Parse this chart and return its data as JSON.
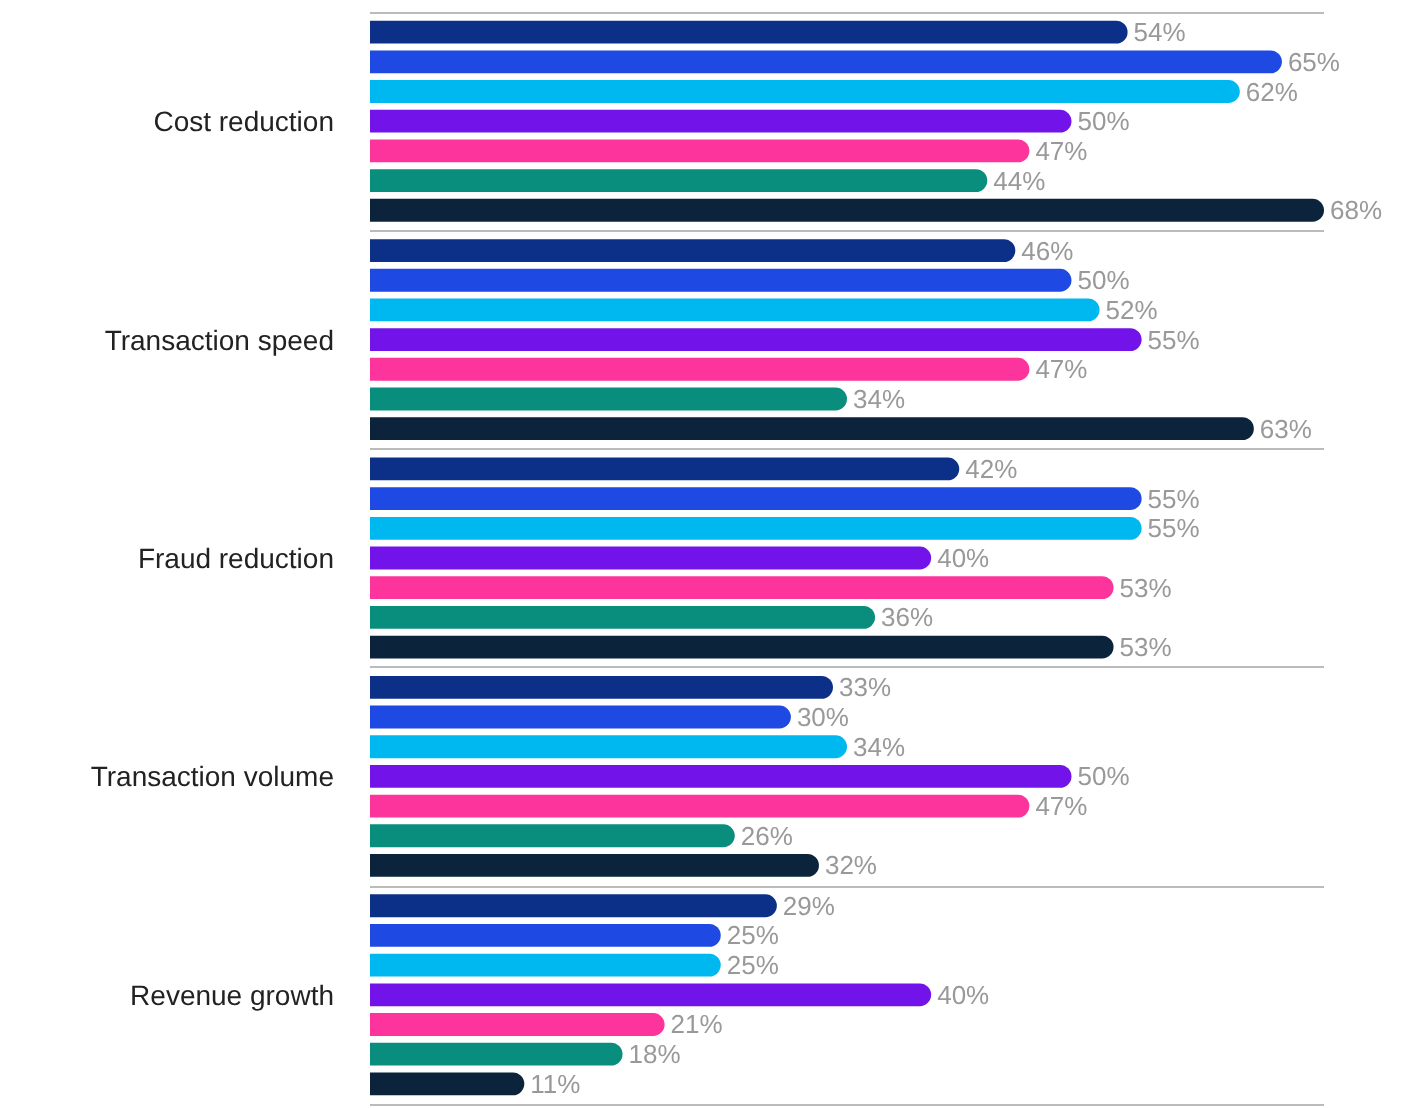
{
  "chart_data": {
    "type": "bar",
    "orientation": "horizontal",
    "categories": [
      "Cost reduction",
      "Transaction speed",
      "Fraud reduction",
      "Transaction volume",
      "Revenue growth"
    ],
    "series": [
      {
        "color": "#0c2f87",
        "values": [
          54,
          46,
          42,
          33,
          29
        ],
        "value_labels": [
          "54%",
          "46%",
          "42%",
          "33%",
          "29%"
        ]
      },
      {
        "color": "#1e49e2",
        "values": [
          65,
          50,
          55,
          30,
          25
        ],
        "value_labels": [
          "65%",
          "50%",
          "55%",
          "30%",
          "25%"
        ]
      },
      {
        "color": "#00b8f0",
        "values": [
          62,
          52,
          55,
          34,
          25
        ],
        "value_labels": [
          "62%",
          "52%",
          "55%",
          "34%",
          "25%"
        ]
      },
      {
        "color": "#7213ea",
        "values": [
          50,
          55,
          40,
          50,
          40
        ],
        "value_labels": [
          "50%",
          "55%",
          "40%",
          "50%",
          "40%"
        ]
      },
      {
        "color": "#fd349c",
        "values": [
          47,
          47,
          53,
          47,
          21
        ],
        "value_labels": [
          "47%",
          "47%",
          "53%",
          "47%",
          "21%"
        ]
      },
      {
        "color": "#098e7e",
        "values": [
          44,
          34,
          36,
          26,
          18
        ],
        "value_labels": [
          "44%",
          "34%",
          "36%",
          "26%",
          "18%"
        ]
      },
      {
        "color": "#0c233c",
        "values": [
          68,
          63,
          53,
          32,
          11
        ],
        "value_labels": [
          "68%",
          "63%",
          "53%",
          "32%",
          "11%"
        ]
      }
    ],
    "grid": "y"
  }
}
